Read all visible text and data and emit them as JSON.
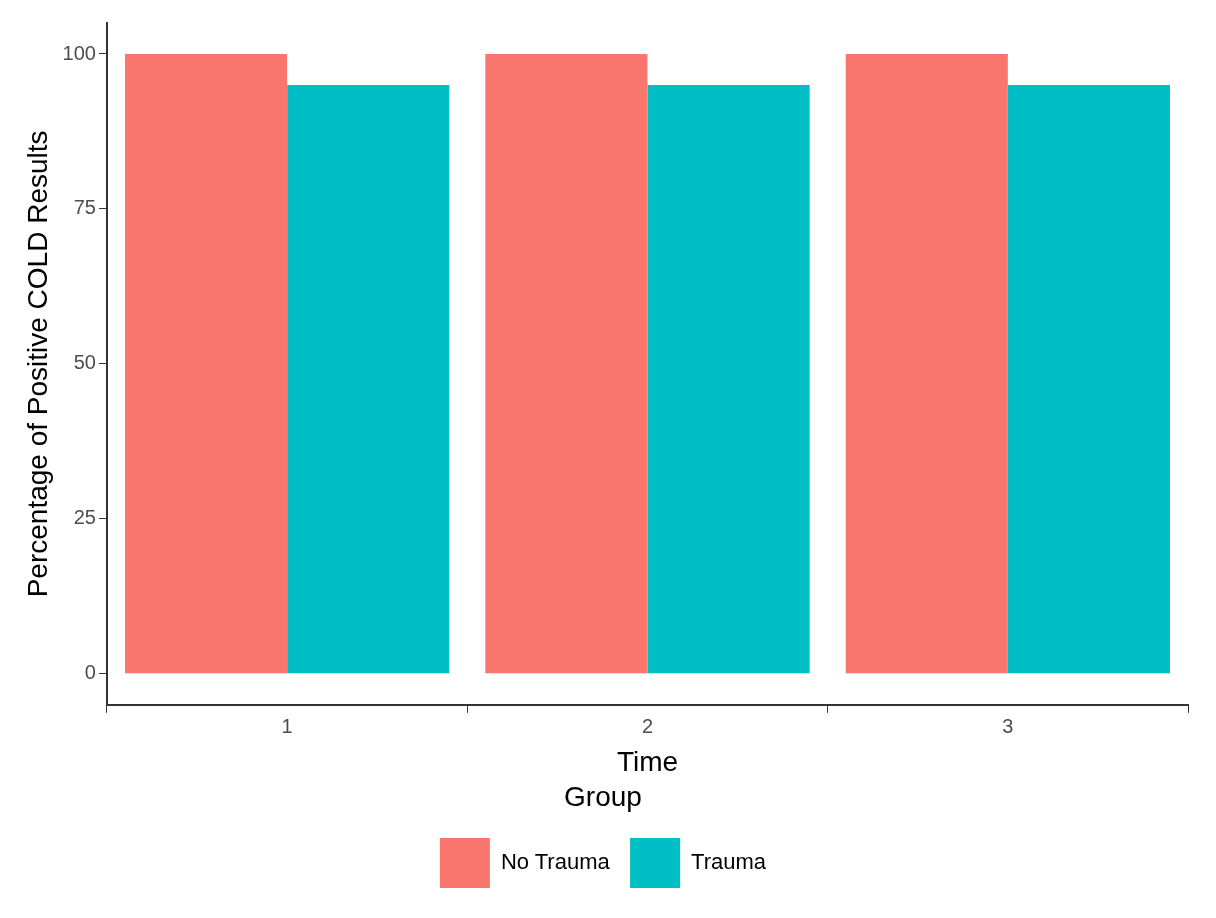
{
  "chart_data": {
    "type": "bar",
    "xlabel": "Time",
    "ylabel": "Percentage of Positive COLD Results",
    "legend_title": "Group",
    "categories": [
      "1",
      "2",
      "3"
    ],
    "series": [
      {
        "name": "No Trauma",
        "color": "#f8766d",
        "values": [
          100,
          100,
          100
        ]
      },
      {
        "name": "Trauma",
        "color": "#00bfc4",
        "values": [
          95,
          95,
          95
        ]
      }
    ],
    "ylim": [
      -5,
      105
    ],
    "yticks": [
      0,
      25,
      50,
      75,
      100
    ],
    "grid": false,
    "legend": "bottom"
  }
}
